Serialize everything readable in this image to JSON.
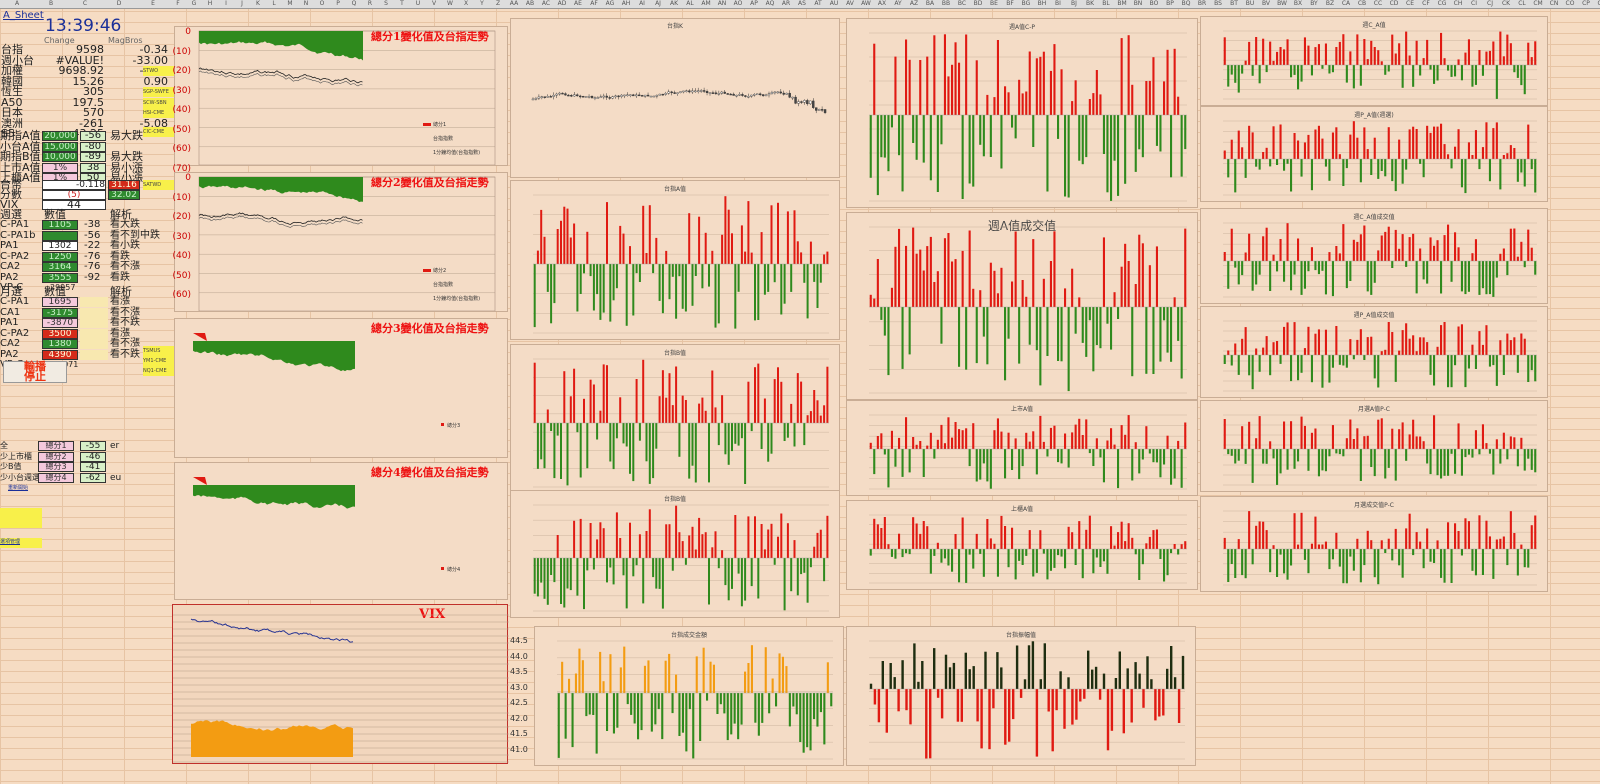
{
  "colors": {
    "red": "#e01a12",
    "green": "#2f8a1d",
    "orange": "#f39c12",
    "navy": "#283593",
    "bg": "#f6dcc3"
  },
  "header": {
    "cols": [
      "A",
      "B",
      "C",
      "D",
      "E",
      "F",
      "G",
      "H",
      "I",
      "J",
      "K",
      "L",
      "M",
      "N",
      "O",
      "P",
      "Q",
      "R",
      "S",
      "T",
      "U",
      "V",
      "W",
      "X",
      "Y",
      "Z",
      "AA",
      "AB",
      "AC",
      "AD",
      "AE",
      "AF",
      "AG",
      "AH",
      "AI",
      "AJ",
      "AK",
      "AL",
      "AM",
      "AN",
      "AO",
      "AP",
      "AQ",
      "AR",
      "AS",
      "AT",
      "AU",
      "AV",
      "AW",
      "AX",
      "AY",
      "AZ",
      "BA",
      "BB",
      "BC",
      "BD",
      "BE",
      "BF",
      "BG",
      "BH",
      "BI",
      "BJ",
      "BK",
      "BL",
      "BM",
      "BN",
      "BO",
      "BP",
      "BQ",
      "BR",
      "BS",
      "BT",
      "BU",
      "BV",
      "BW",
      "BX",
      "BY",
      "BZ",
      "CA",
      "CB",
      "CC",
      "CD",
      "CE",
      "CF",
      "CG",
      "CH",
      "CI",
      "CJ",
      "CK",
      "CL",
      "CM",
      "CN",
      "CO",
      "CP",
      "CQ",
      "CR",
      "CS",
      "CT",
      "CU",
      "CV"
    ]
  },
  "sheet": {
    "title": "A_Sheet",
    "clock": "13:39:46",
    "change_hdr": "Change",
    "right_hdr": "MagBros"
  },
  "quotes": [
    {
      "name": "台指",
      "value": "9598",
      "change": "-0.34"
    },
    {
      "name": "週小台",
      "value": "#VALUE!",
      "change": "-33.00"
    },
    {
      "name": "加權",
      "value": "9698.92",
      "change": "-0.09"
    },
    {
      "name": "韓國",
      "value": "15.26",
      "change": "0.90"
    },
    {
      "name": "恆生",
      "value": "305",
      "change": "1.32"
    },
    {
      "name": "A50",
      "value": "197.5",
      "change": "1.58"
    },
    {
      "name": "日本",
      "value": "570",
      "change": "3.10"
    },
    {
      "name": "澳洲",
      "value": "-261",
      "change": "-5.08"
    },
    {
      "name": "S5",
      "value": "-43.25",
      "change": ""
    }
  ],
  "yellow_notes": [
    "STWO",
    "SGP-SWFE",
    "SCW-SBN",
    "HSI-CME",
    "CIC-CME"
  ],
  "a_rows": [
    {
      "name": "期指A值",
      "box": "20,000",
      "boxc": "g",
      "num": "-56",
      "tag": "易大跌"
    },
    {
      "name": "小台A值",
      "box": "15,000",
      "boxc": "g",
      "num": "-80",
      "tag": ""
    },
    {
      "name": "期指B值",
      "box": "10,000",
      "boxc": "g",
      "num": "-89",
      "tag": "易大跌"
    },
    {
      "name": "上市A值",
      "box": "1%",
      "boxc": "p",
      "num": "38",
      "tag": "易小漲"
    },
    {
      "name": "上櫃A值",
      "box": "1%",
      "boxc": "p",
      "num": "50",
      "tag": "易小漲"
    }
  ],
  "twd": {
    "name": "台幣",
    "value": "-0.118",
    "box": "31.16",
    "note": "SATWD"
  },
  "fen": {
    "name": "分數",
    "value": "(5)",
    "box": "32.02"
  },
  "vix": {
    "name": "VIX",
    "value": "44"
  },
  "week": {
    "title": "週選",
    "col2": "數值",
    "col4": "解析",
    "rows": [
      {
        "name": "C-PA1",
        "box": "1105",
        "boxc": "g",
        "num": "-38",
        "tag": "看大跌"
      },
      {
        "name": "C-PA1b",
        "box": "",
        "boxc": "g",
        "num": "-56",
        "tag": "看不到中跌"
      },
      {
        "name": "PA1",
        "box": "1302",
        "boxc": "w",
        "num": "-22",
        "tag": "看小跌"
      },
      {
        "name": "C-PA2",
        "box": "1250",
        "boxc": "g",
        "num": "-76",
        "tag": "看跌"
      },
      {
        "name": "CA2",
        "box": "3164",
        "boxc": "g",
        "num": "-76",
        "tag": "看不漲"
      },
      {
        "name": "PA2",
        "box": "3555",
        "boxc": "g",
        "num": "-92",
        "tag": "看跌"
      }
    ],
    "vpc": "VP-C",
    "vpc_val": "29957"
  },
  "month": {
    "title": "月選",
    "col2": "數值",
    "col4": "解析",
    "rows": [
      {
        "name": "C-PA1",
        "box": "1695",
        "boxc": "p",
        "tag": "看漲"
      },
      {
        "name": "CA1",
        "box": "-3175",
        "boxc": "g",
        "tag": "看不漲"
      },
      {
        "name": "PA1",
        "box": "-3870",
        "boxc": "p",
        "tag": "看不跌"
      },
      {
        "name": "C-PA2",
        "box": "3500",
        "boxc": "r",
        "tag": "看漲"
      },
      {
        "name": "CA2",
        "box": "1380",
        "boxc": "g",
        "tag": "看不漲"
      },
      {
        "name": "PA2",
        "box": "4390",
        "boxc": "r",
        "tag": "看不跌"
      }
    ],
    "vpc": "VP-C",
    "vpc_val": "-13071"
  },
  "notes2": [
    "TSMUS",
    "YM1-CME",
    "NQ1-CME"
  ],
  "stop_btn": "輸播\n停止",
  "score_rows": [
    {
      "name": "全",
      "box": "總分1",
      "num": "-55",
      "tag": "er"
    },
    {
      "name": "少上市櫃",
      "box": "總分2",
      "num": "-46",
      "tag": ""
    },
    {
      "name": "少B值",
      "box": "總分3",
      "num": "-41",
      "tag": ""
    },
    {
      "name": "少小台週選",
      "box": "總分4",
      "num": "-62",
      "tag": "eu"
    }
  ],
  "footer_link": "重新開始",
  "footer_link2": "選項管理",
  "totals": [
    {
      "title": "總分1變化值及台指走勢",
      "y": [
        "0",
        "(10)",
        "(20)",
        "(30)",
        "(40)",
        "(50)",
        "(60)",
        "(70)"
      ],
      "legend": [
        "總分1",
        "台指指數",
        "1分鐘均值(台指指數)"
      ]
    },
    {
      "title": "總分2變化值及台指走勢",
      "y": [
        "0",
        "(10)",
        "(20)",
        "(30)",
        "(40)",
        "(50)",
        "(60)"
      ],
      "legend": [
        "總分2",
        "台指指數",
        "1分鐘均值(台指指數)"
      ]
    },
    {
      "title": "總分3變化值及台指走勢",
      "y": [],
      "legend": [
        "總分3"
      ]
    },
    {
      "title": "總分4變化值及台指走勢",
      "y": [],
      "legend": [
        "總分4"
      ]
    }
  ],
  "vix_chart": {
    "title": "VIX",
    "y": [
      "44.5",
      "44.0",
      "43.5",
      "43.0",
      "42.5",
      "42.0",
      "41.5",
      "41.0"
    ]
  },
  "mid_titles": [
    "台指K",
    "台指A值",
    "台指B值",
    "台指B值"
  ],
  "week_titles": [
    "週A值C-P",
    "週A值成交值"
  ],
  "right_titles": [
    "週C_A值",
    "週P_A值(週選)",
    "週C_A值成交值",
    "週P_A值成交值"
  ],
  "bottom_titles": [
    "上市A值",
    "上櫃A值",
    "月選A值P-C",
    "月選成交值P-C"
  ],
  "low_titles": [
    "台指成交金額",
    "台指振幅值"
  ]
}
